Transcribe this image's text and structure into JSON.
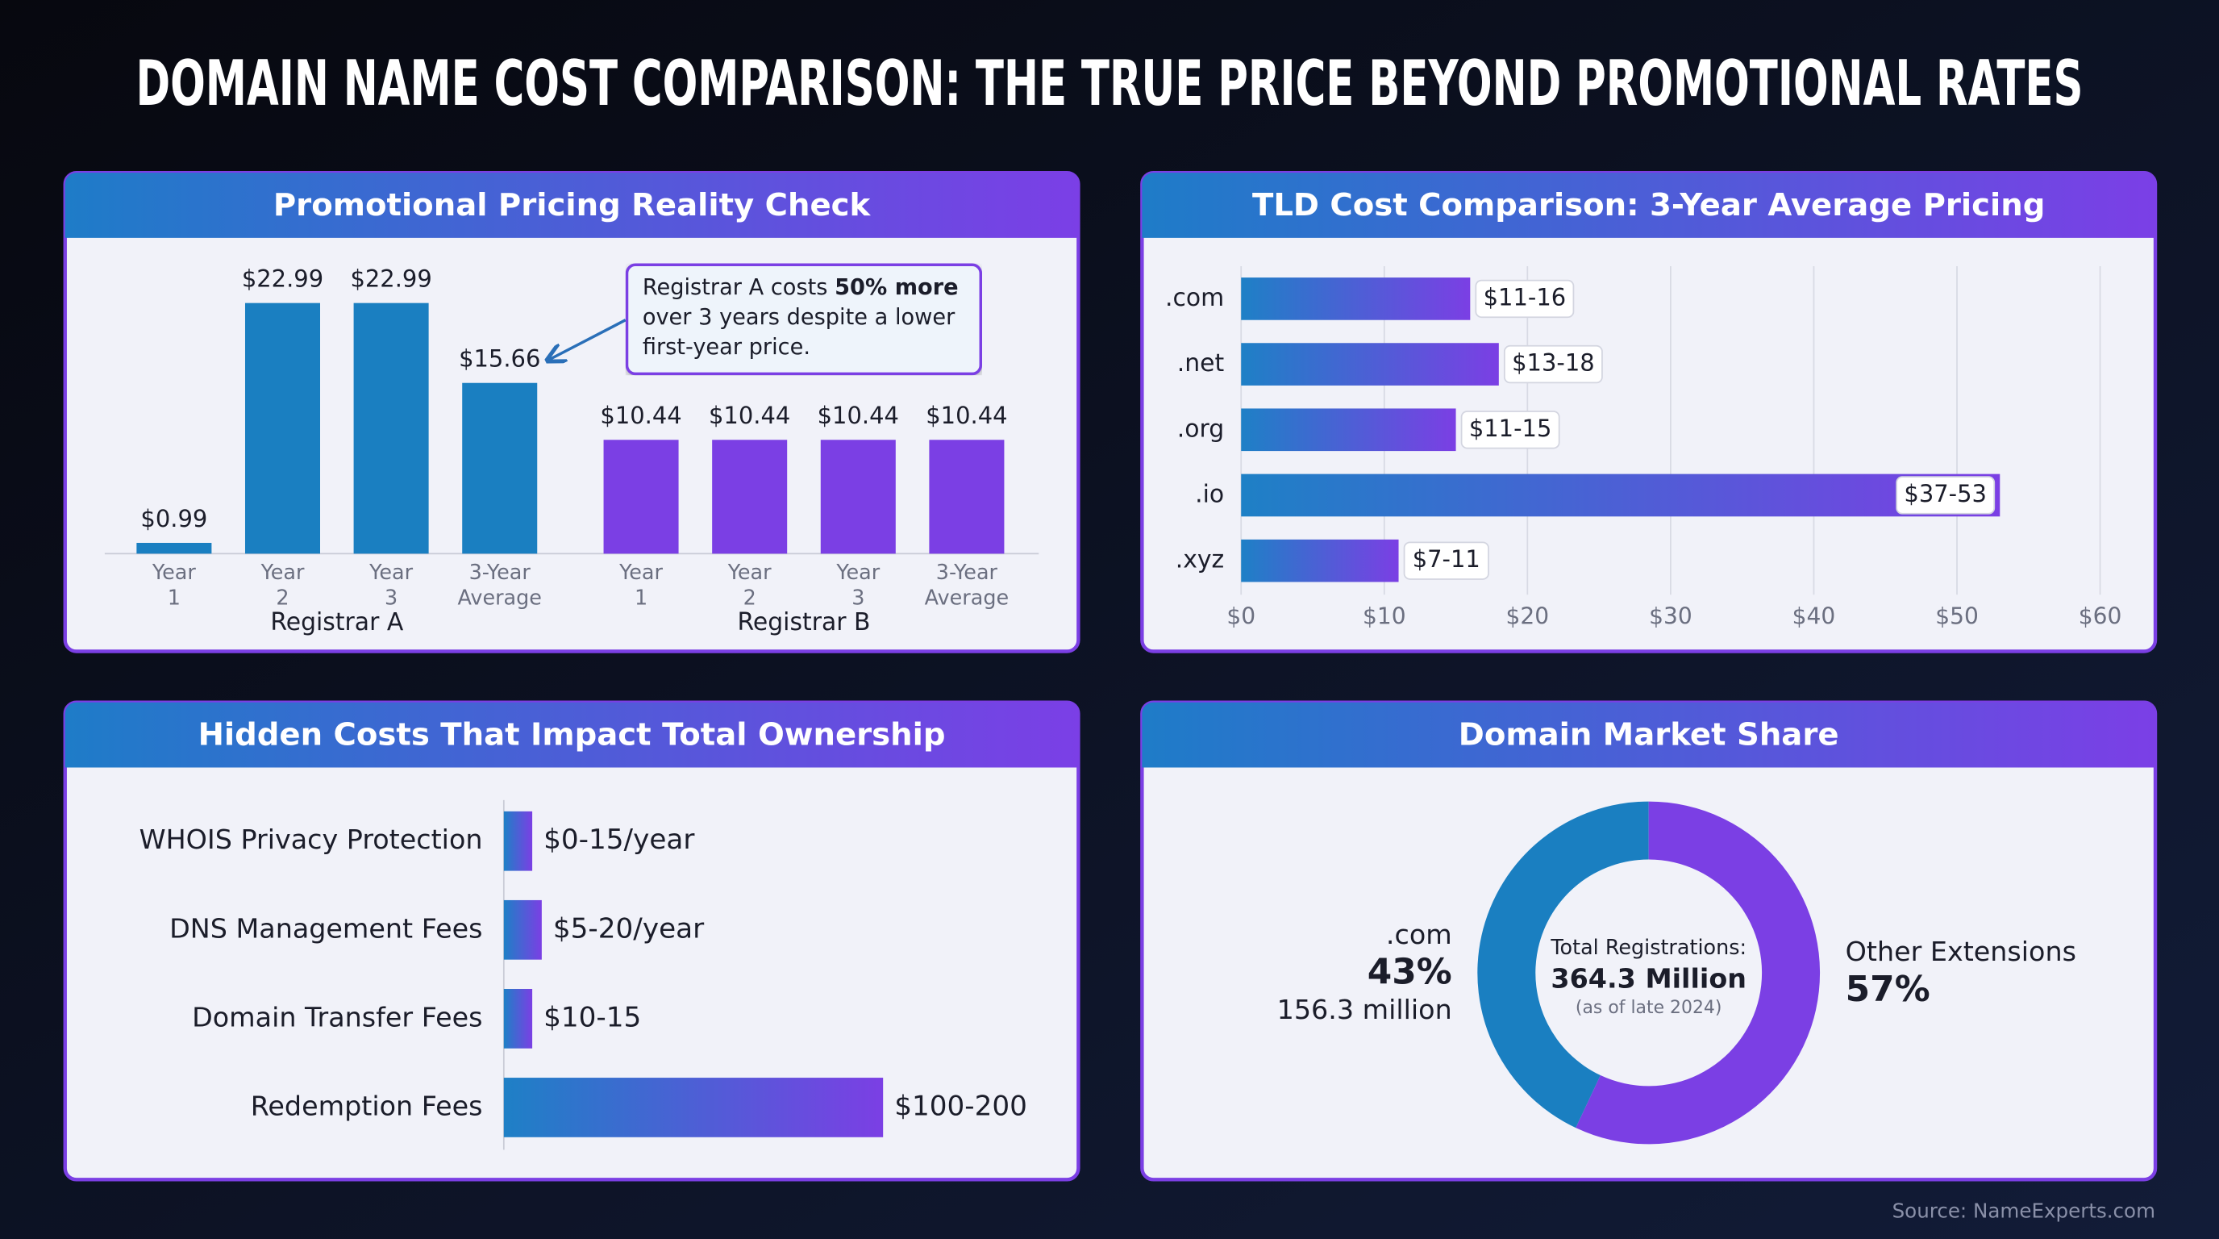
{
  "title": "DOMAIN NAME COST COMPARISON: THE TRUE PRICE BEYOND PROMOTIONAL RATES",
  "source": "Source: NameExperts.com",
  "chart_data": [
    {
      "type": "bar",
      "title": "Promotional Pricing Reality Check",
      "categories": [
        "Year 1",
        "Year 2",
        "Year 3",
        "3-Year Average"
      ],
      "series": [
        {
          "name": "Registrar A",
          "color": "#1a7fc1",
          "values": [
            0.99,
            22.99,
            22.99,
            15.66
          ],
          "value_labels": [
            "$0.99",
            "$22.99",
            "$22.99",
            "$15.66"
          ]
        },
        {
          "name": "Registrar B",
          "color": "#7b3fe4",
          "values": [
            10.44,
            10.44,
            10.44,
            10.44
          ],
          "value_labels": [
            "$10.44",
            "$10.44",
            "$10.44",
            "$10.44"
          ]
        }
      ],
      "annotation": [
        "Registrar A costs ",
        "50% more",
        " over 3 years despite a lower first-year price."
      ]
    },
    {
      "type": "bar",
      "orientation": "horizontal",
      "title": "TLD Cost Comparison: 3-Year Average Pricing",
      "categories": [
        ".com",
        ".net",
        ".org",
        ".io",
        ".xyz"
      ],
      "values": [
        16,
        18,
        15,
        53,
        11
      ],
      "value_labels": [
        "$11-16",
        "$13-18",
        "$11-15",
        "$37-53",
        "$7-11"
      ],
      "colors": [
        "#1e80c6",
        "#7b3fe4"
      ],
      "xlim": [
        0,
        60
      ],
      "xticks": [
        {
          "value": 0,
          "label": "$0"
        },
        {
          "value": 10,
          "label": "$10"
        },
        {
          "value": 20,
          "label": "$20"
        },
        {
          "value": 30,
          "label": "$30"
        },
        {
          "value": 40,
          "label": "$40"
        },
        {
          "value": 50,
          "label": "$50"
        },
        {
          "value": 60,
          "label": "$60"
        }
      ],
      "grid": true
    },
    {
      "type": "bar",
      "orientation": "horizontal",
      "title": "Hidden Costs That Impact Total Ownership",
      "categories": [
        "WHOIS Privacy Protection",
        "DNS Management Fees",
        "Domain Transfer Fees",
        "Redemption Fees"
      ],
      "values": [
        15,
        20,
        15,
        200
      ],
      "value_labels": [
        "$0-15/year",
        "$5-20/year",
        "$10-15",
        "$100-200"
      ],
      "colors": [
        "#1e80c6",
        "#7b3fe4"
      ]
    },
    {
      "type": "donut",
      "title": "Domain Market Share",
      "categories": [
        ".com",
        "Other Extensions"
      ],
      "values": [
        43,
        57
      ],
      "value_labels": [
        "43%",
        "57%"
      ],
      "colors": [
        "#1a7fc1",
        "#7b3fe4"
      ],
      "annotation": "156.3 million",
      "center_label": {
        "title": "Total Registrations:",
        "value": "364.3 Million",
        "note": "(as of late 2024)"
      }
    }
  ]
}
